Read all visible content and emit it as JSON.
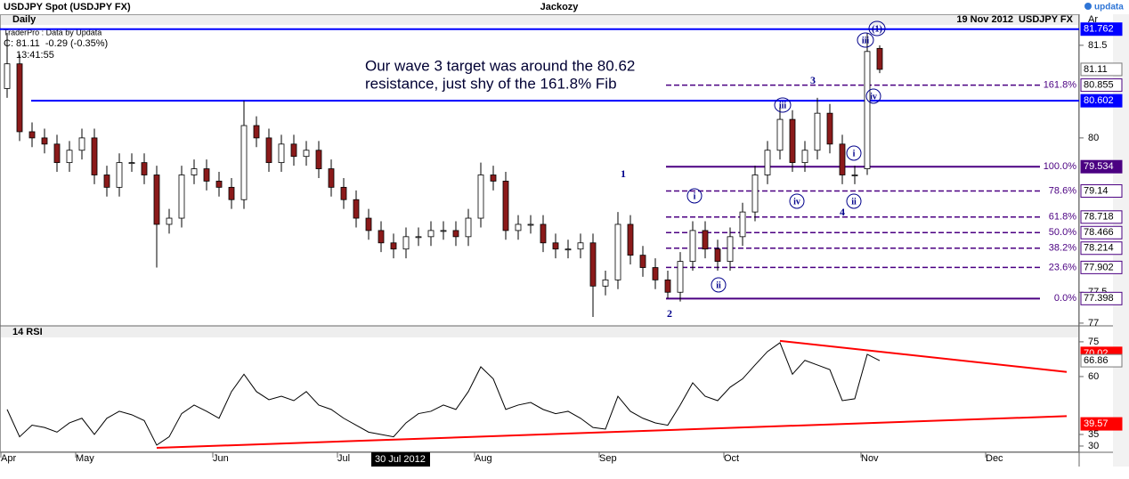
{
  "header": {
    "title": "USDJPY Spot (USDJPY FX)",
    "author": "Jackozy",
    "logo": "updata",
    "period": "Daily",
    "date_symbol": "19 Nov 2012  USDJPY FX",
    "corner": "Ar",
    "source": "TraderPro : Data by Updata",
    "quote": "C: 81.11  -0.29 (-0.35%)",
    "time": "13:41:55"
  },
  "chart_data": [
    {
      "type": "candlestick",
      "note": [
        "Our wave 3 target was around the 80.62",
        "resistance, just shy of the 161.8% Fib"
      ],
      "up_color": "#ffffff",
      "down_color": "#8b1a1a",
      "ylim": [
        76.97,
        81.83
      ],
      "yticks": [
        77,
        77.5,
        80,
        81.5
      ],
      "open": [
        80.8,
        81.2,
        80.1,
        80.0,
        79.9,
        79.6,
        79.8,
        80.0,
        79.4,
        79.2,
        79.6,
        79.6,
        79.4,
        78.6,
        78.7,
        79.4,
        79.5,
        79.3,
        79.2,
        79.0,
        80.2,
        80.0,
        79.6,
        79.9,
        79.7,
        79.8,
        79.5,
        79.2,
        79.0,
        78.7,
        78.5,
        78.3,
        78.2,
        78.4,
        78.4,
        78.5,
        78.5,
        78.4,
        78.7,
        79.4,
        79.3,
        78.5,
        78.6,
        78.6,
        78.3,
        78.2,
        78.2,
        78.3,
        77.6,
        77.7,
        78.6,
        78.1,
        77.9,
        77.7,
        77.5,
        78.0,
        78.5,
        78.2,
        78.0,
        78.4,
        78.8,
        79.4,
        79.8,
        80.3,
        79.6,
        79.8,
        80.4,
        79.9,
        79.4,
        79.5,
        81.45,
        null,
        null,
        null,
        null,
        null,
        null,
        null,
        null,
        null,
        null,
        null,
        null,
        null,
        null,
        null
      ],
      "high": [
        81.7,
        81.35,
        80.25,
        80.15,
        80.05,
        79.95,
        80.15,
        80.15,
        79.55,
        79.75,
        79.75,
        79.75,
        79.55,
        78.85,
        79.55,
        79.65,
        79.65,
        79.45,
        79.35,
        80.6,
        80.35,
        80.15,
        80.05,
        80.05,
        79.95,
        79.95,
        79.65,
        79.35,
        79.15,
        78.85,
        78.65,
        78.45,
        78.55,
        78.55,
        78.65,
        78.65,
        78.65,
        78.85,
        79.6,
        79.55,
        79.45,
        78.75,
        78.75,
        78.75,
        78.45,
        78.35,
        78.45,
        78.45,
        77.85,
        78.8,
        78.75,
        78.25,
        78.05,
        77.85,
        78.15,
        78.65,
        78.65,
        78.35,
        78.55,
        78.95,
        79.55,
        79.95,
        80.5,
        80.45,
        79.95,
        80.65,
        80.55,
        80.05,
        79.55,
        81.7,
        81.5,
        null,
        null,
        null,
        null,
        null,
        null,
        null,
        null,
        null,
        null,
        null,
        null,
        null,
        null,
        null
      ],
      "low": [
        80.65,
        79.95,
        79.85,
        79.75,
        79.45,
        79.45,
        79.65,
        79.25,
        79.05,
        79.05,
        79.45,
        79.25,
        77.9,
        78.45,
        78.55,
        79.25,
        79.15,
        79.05,
        78.85,
        78.85,
        79.85,
        79.45,
        79.45,
        79.55,
        79.55,
        79.35,
        79.05,
        78.85,
        78.55,
        78.35,
        78.15,
        78.05,
        78.05,
        78.25,
        78.25,
        78.35,
        78.25,
        78.25,
        78.55,
        79.15,
        78.35,
        78.35,
        78.45,
        78.15,
        78.05,
        78.05,
        78.05,
        77.1,
        77.45,
        77.55,
        77.95,
        77.75,
        77.55,
        77.4,
        77.35,
        77.85,
        78.05,
        77.85,
        77.85,
        78.25,
        78.65,
        79.25,
        79.65,
        79.45,
        79.45,
        79.65,
        79.75,
        79.25,
        79.25,
        79.4,
        81.05,
        null,
        null,
        null,
        null,
        null,
        null,
        null,
        null,
        null,
        null,
        null,
        null,
        null,
        null,
        null
      ],
      "close": [
        81.2,
        80.1,
        80.0,
        79.9,
        79.6,
        79.8,
        80.0,
        79.4,
        79.2,
        79.6,
        79.6,
        79.4,
        78.6,
        78.7,
        79.4,
        79.5,
        79.3,
        79.2,
        79.0,
        80.2,
        80.0,
        79.6,
        79.9,
        79.7,
        79.8,
        79.5,
        79.2,
        79.0,
        78.7,
        78.5,
        78.3,
        78.2,
        78.4,
        78.4,
        78.5,
        78.5,
        78.4,
        78.7,
        79.4,
        79.3,
        78.5,
        78.6,
        78.6,
        78.3,
        78.2,
        78.2,
        78.3,
        77.6,
        77.7,
        78.6,
        78.1,
        77.9,
        77.7,
        77.5,
        78.0,
        78.5,
        78.2,
        78.0,
        78.4,
        78.8,
        79.4,
        79.8,
        80.3,
        79.6,
        79.8,
        80.4,
        79.9,
        79.4,
        79.4,
        81.4,
        81.11,
        null,
        null,
        null,
        null,
        null,
        null,
        null,
        null,
        null,
        null,
        null,
        null,
        null,
        null,
        null
      ],
      "levels": [
        {
          "value": 81.762,
          "color": "#0000ff",
          "filled": true
        },
        {
          "value": 80.602,
          "color": "#0000ff",
          "filled": true
        }
      ],
      "fib": {
        "color": "#4b0082",
        "levels": [
          {
            "value": 80.855,
            "label": "161.8%",
            "solid": false,
            "filled": false
          },
          {
            "value": 79.534,
            "label": "100.0%",
            "solid": true,
            "filled": true
          },
          {
            "value": 79.14,
            "label": "78.6%",
            "solid": false,
            "filled": false
          },
          {
            "value": 78.718,
            "label": "61.8%",
            "solid": false,
            "filled": false
          },
          {
            "value": 78.466,
            "label": "50.0%",
            "solid": false,
            "filled": false
          },
          {
            "value": 78.214,
            "label": "38.2%",
            "solid": false,
            "filled": false
          },
          {
            "value": 77.902,
            "label": "23.6%",
            "solid": false,
            "filled": false
          },
          {
            "value": 77.398,
            "label": "0.0%",
            "solid": true,
            "filled": false
          }
        ]
      },
      "annotations": [
        {
          "text": "(1)",
          "circled": true
        },
        {
          "text": "iii",
          "circled": true
        },
        {
          "text": "iv",
          "circled": true
        },
        {
          "text": "3",
          "circled": false
        },
        {
          "text": "iii",
          "circled": true
        },
        {
          "text": "i",
          "circled": true
        },
        {
          "text": "iv",
          "circled": true
        },
        {
          "text": "ii",
          "circled": true
        },
        {
          "text": "4",
          "circled": false
        },
        {
          "text": "1",
          "circled": false
        },
        {
          "text": "i",
          "circled": true
        },
        {
          "text": "ii",
          "circled": true
        },
        {
          "text": "2",
          "circled": false
        }
      ]
    },
    {
      "type": "line",
      "title": "14 RSI",
      "color": "#000000",
      "categories": [
        "Apr",
        null,
        null,
        null,
        null,
        null,
        "May",
        null,
        null,
        null,
        null,
        null,
        null,
        null,
        null,
        null,
        null,
        "Jun",
        null,
        null,
        null,
        null,
        null,
        null,
        null,
        null,
        null,
        "Jul",
        null,
        null,
        null,
        null,
        null,
        null,
        null,
        null,
        null,
        null,
        "Aug",
        null,
        null,
        null,
        null,
        null,
        null,
        null,
        null,
        null,
        "Sep",
        null,
        null,
        null,
        null,
        null,
        null,
        null,
        null,
        null,
        "Oct",
        null,
        null,
        null,
        null,
        null,
        null,
        null,
        null,
        null,
        null,
        "Nov",
        null,
        null,
        null,
        null,
        null,
        null,
        null,
        null,
        null,
        "Dec",
        null,
        null,
        null,
        null,
        null,
        null
      ],
      "crosshair": {
        "label": "30 Jul 2012"
      },
      "values": [
        45.8,
        34,
        39,
        38,
        36,
        40,
        42,
        35,
        42,
        45,
        43.5,
        41,
        30.4,
        34,
        44,
        47.7,
        45,
        42,
        53.5,
        61,
        53.5,
        50,
        51.5,
        49.6,
        53.5,
        47.7,
        45.8,
        42,
        39,
        36,
        35,
        34,
        40,
        44,
        45,
        47.7,
        45.8,
        53.5,
        64.2,
        59,
        45.8,
        47.7,
        48.8,
        45.8,
        44,
        45,
        42,
        38,
        37.3,
        51.5,
        45,
        42,
        40,
        39,
        47.7,
        57.3,
        51.5,
        49.6,
        55.4,
        59,
        65,
        70.8,
        74.6,
        61,
        67,
        65,
        63,
        49.6,
        50.4,
        69.6,
        66.86,
        null,
        null,
        null,
        null,
        null,
        null,
        null,
        null,
        null,
        null,
        null,
        null,
        null,
        null,
        null
      ],
      "ylim": [
        27.3,
        81.5
      ],
      "yticks": [
        30,
        35,
        60,
        75
      ],
      "trendlines": [
        {
          "color": "#ff0000",
          "points": [
            [
              62,
              75.4
            ],
            [
              85,
              62.0
            ]
          ]
        },
        {
          "color": "#ff0000",
          "points": [
            [
              12,
              29.2
            ],
            [
              85,
              42.9
            ]
          ]
        }
      ],
      "markers": [
        {
          "value": 70.02,
          "color": "#ff0000"
        },
        {
          "value": 39.57,
          "color": "#ff0000"
        }
      ]
    }
  ]
}
